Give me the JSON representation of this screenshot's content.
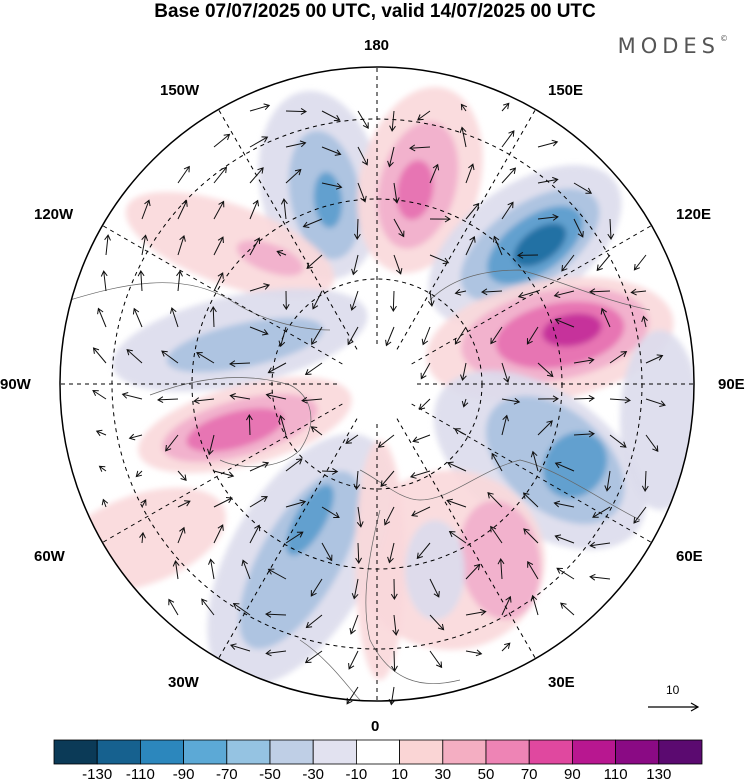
{
  "header": {
    "title": "Base 07/07/2025 00 UTC, valid 14/07/2025 00 UTC",
    "brand": "MODES",
    "brand_mark": "©"
  },
  "map": {
    "projection": "north polar stereographic",
    "longitude_labels": {
      "top": "180",
      "top_left": "150W",
      "top_right": "150E",
      "upper_left": "120W",
      "upper_right": "120E",
      "left": "90W",
      "right": "90E",
      "lower_left": "60W",
      "lower_right": "60E",
      "bottom_left": "30W",
      "bottom_right": "30E",
      "bottom": "0"
    },
    "reference_vector": {
      "label": "10"
    }
  },
  "colorbar": {
    "colors": [
      "#0b3a57",
      "#16618f",
      "#2c87bd",
      "#5ca9d6",
      "#95c3e2",
      "#bfcfe6",
      "#e2e2f0",
      "#ffffff",
      "#fad5d5",
      "#f4aec2",
      "#ee84b5",
      "#e0489f",
      "#b81790",
      "#8a0a84",
      "#5b0a70"
    ],
    "labels": [
      "-130",
      "-110",
      "-90",
      "-70",
      "-50",
      "-30",
      "-10",
      "10",
      "30",
      "50",
      "70",
      "90",
      "110",
      "130"
    ]
  },
  "anomaly_colors": {
    "neg_strong": "#1c6b9e",
    "neg_mid": "#5a9ccd",
    "neg_weak": "#a9c1e0",
    "neg_faint": "#dcdcec",
    "pos_faint": "#f9d8da",
    "pos_weak": "#f2aecb",
    "pos_mid": "#e66fb0",
    "pos_strong": "#c22a98"
  }
}
